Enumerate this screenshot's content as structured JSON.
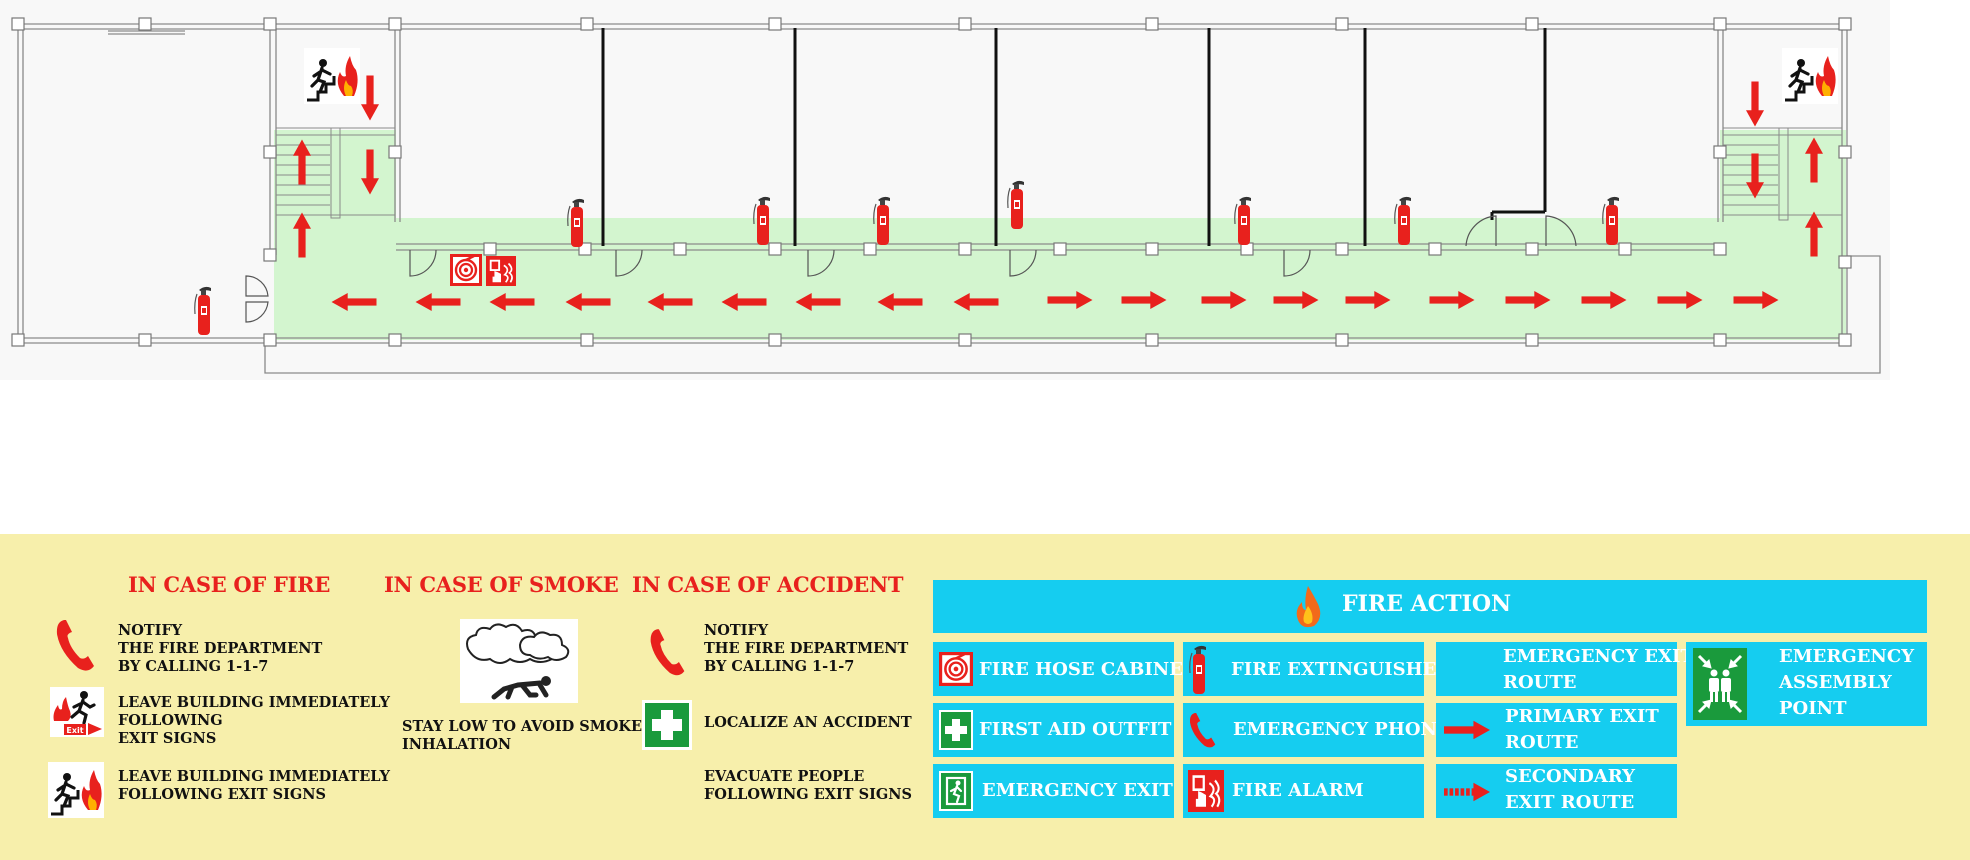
{
  "colors": {
    "corridor": "#d3f5cf",
    "route_arrow": "#e8211d",
    "legend_bg": "#f7efab",
    "fire_action_bg": "#15cdf0",
    "first_aid_green": "#1a9a3c",
    "alarm_red": "#e8211d"
  },
  "plan": {
    "icons": [
      "fire-escape-stairs-icon",
      "fire-extinguisher-icon",
      "fire-hose-cabinet-icon",
      "fire-alarm-icon",
      "primary-route-arrow-icon"
    ]
  },
  "sections": {
    "fire": {
      "title": "IN CASE OF FIRE",
      "items": [
        {
          "icon": "phone-icon",
          "text": "NOTIFY\nTHE FIRE DEPARTMENT\nBY CALLING 1-1-7"
        },
        {
          "icon": "exit-sign-icon",
          "text": "LEAVE BUILDING IMMEDIATELY\nFOLLOWING\nEXIT SIGNS"
        },
        {
          "icon": "fire-escape-stairs-icon",
          "text": "LEAVE BUILDING IMMEDIATELY\nFOLLOWING EXIT SIGNS"
        }
      ]
    },
    "smoke": {
      "title": "IN CASE OF SMOKE",
      "icon": "crawl-under-smoke-icon",
      "text": "STAY LOW TO AVOID SMOKE\nINHALATION"
    },
    "accident": {
      "title": "IN CASE OF ACCIDENT",
      "items": [
        {
          "icon": "phone-icon",
          "text": "NOTIFY\nTHE FIRE DEPARTMENT\nBY CALLING 1-1-7"
        },
        {
          "icon": "first-aid-icon",
          "text": "LOCALIZE AN ACCIDENT"
        },
        {
          "icon": "",
          "text": "EVACUATE PEOPLE\nFOLLOWING EXIT SIGNS"
        }
      ]
    }
  },
  "fire_action": {
    "title": "FIRE ACTION",
    "icon": "flame-icon",
    "cells": [
      {
        "icon": "fire-hose-cabinet-icon",
        "label": "FIRE HOSE CABINET"
      },
      {
        "icon": "fire-extinguisher-icon",
        "label": "FIRE EXTINGUISHER"
      },
      {
        "icon": "",
        "label": "EMERGENCY EXIT\nROUTE"
      },
      {
        "icon": "assembly-point-icon",
        "label": "EMERGENCY\nASSEMBLY\nPOINT"
      },
      {
        "icon": "first-aid-icon",
        "label": "FIRST AID OUTFIT"
      },
      {
        "icon": "phone-icon",
        "label": "EMERGENCY PHONE"
      },
      {
        "icon": "primary-route-arrow-icon",
        "label": "PRIMARY EXIT\nROUTE"
      },
      {
        "icon": "emergency-exit-icon",
        "label": "EMERGENCY EXIT"
      },
      {
        "icon": "fire-alarm-icon",
        "label": "FIRE ALARM"
      },
      {
        "icon": "secondary-route-arrow-icon",
        "label": "SECONDARY\nEXIT ROUTE"
      }
    ]
  }
}
